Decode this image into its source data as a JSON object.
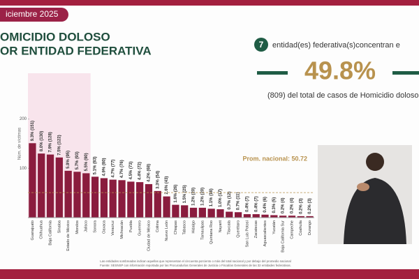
{
  "header": {
    "date": "iciembre 2025",
    "title_line1": "OMICIDIO DOLOSO",
    "title_line2": "OR ENTIDAD FEDERATIVA"
  },
  "summary": {
    "count": 7,
    "text": "entidad(es) federativa(s)concentran e",
    "percent": {
      "value": 49.8,
      "label": "49.8%"
    },
    "detail": "(809) del total de casos de Homicidio doloso"
  },
  "chart_data": {
    "type": "bar",
    "y_label": "Núm. de víctimas",
    "categories": [
      "Guanajuato",
      "Chihuahua",
      "Baja California",
      "Sinaloa",
      "Estado de México",
      "Morelos",
      "Jalisco",
      "Sonora",
      "Oaxaca",
      "Veracruz",
      "Michoacán",
      "Puebla",
      "Guerrero",
      "Ciudad de México",
      "Colima",
      "Nuevo León",
      "Chiapas",
      "Tabasco",
      "Hidalgo",
      "Tamaulipas",
      "Quintana Roo",
      "Nayarit",
      "Tlaxcala",
      "Querétaro",
      "San Luis Potosí",
      "Zacatecas",
      "Aguascalientes",
      "Yucatán",
      "Baja California Sur",
      "Campeche",
      "Coahuila",
      "Durango"
    ],
    "values": [
      151,
      130,
      128,
      122,
      95,
      93,
      90,
      83,
      80,
      77,
      76,
      73,
      72,
      68,
      54,
      43,
      26,
      25,
      20,
      20,
      18,
      17,
      12,
      11,
      7,
      7,
      6,
      5,
      4,
      4,
      3,
      3
    ],
    "value_labels": [
      "9.3% (151)",
      "8.0% (130)",
      "7.9% (128)",
      "7.5% (122)",
      "5.9% (95)",
      "5.7% (93)",
      "5.5% (90)",
      "5.1% (83)",
      "4.9% (80)",
      "4.7% (77)",
      "4.7% (76)",
      "4.5% (73)",
      "4.4% (72)",
      "4.2% (68)",
      "3.3% (54)",
      "2.6% (43)",
      "1.6% (26)",
      "1.5% (25)",
      "1.2% (20)",
      "1.2% (20)",
      "1.1% (18)",
      "1.0% (17)",
      "0.7% (12)",
      "0.7% (11)",
      "0.4% (7)",
      "0.4% (7)",
      "0.4% (6)",
      "0.3% (5)",
      "0.2% (4)",
      "0.2% (4)",
      "0.2% (3)",
      "0.2% (3)"
    ],
    "color": "#8a1c3e",
    "highlight_color": "#f8e4ec",
    "ylim": [
      0,
      300
    ],
    "yticks": [
      100,
      200
    ],
    "reference": {
      "value": 50.72,
      "label": "Prom. nacional: 50.72"
    },
    "notes": [
      "Las entidades sombreadas indican aquellas que representan el cincuenta porciento o más del total nacional y por debajo del promedio nacional",
      "Fuente: SESNSP con información reportada por las Procuradurías Generales de Justicia o Fiscalías Generales de las 32 entidades federativas."
    ]
  }
}
